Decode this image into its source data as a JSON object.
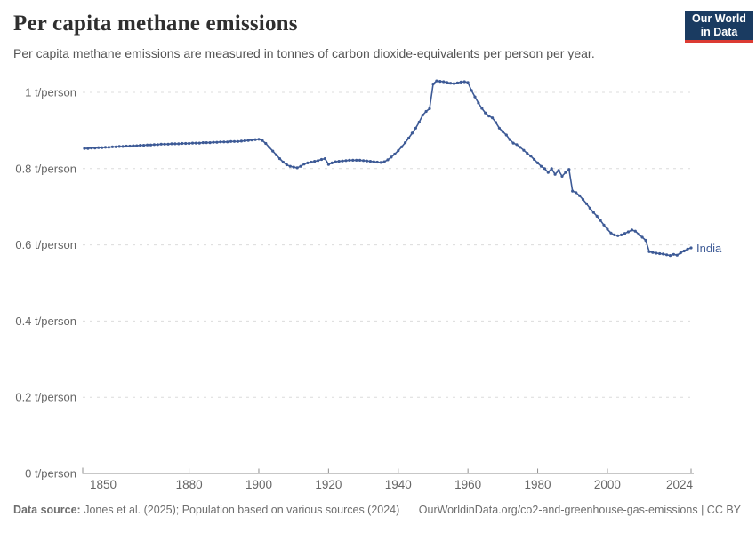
{
  "header": {
    "title": "Per capita methane emissions",
    "subtitle": "Per capita methane emissions are measured in tonnes of carbon dioxide-equivalents per person per year.",
    "logo": {
      "line1": "Our World",
      "line2": "in Data"
    }
  },
  "footer": {
    "source_label": "Data source:",
    "source_text": "Jones et al. (2025); Population based on various sources (2024)",
    "link_text": "OurWorldinData.org/co2-and-greenhouse-gas-emissions",
    "separator": "|",
    "license": "CC BY"
  },
  "colors": {
    "series": "#3d5a96",
    "grid": "#dcdcdc",
    "axis": "#8f8f8f",
    "tick_label": "#666666",
    "logo_bg": "#1a3b61",
    "logo_accent": "#dc3b33"
  },
  "chart_data": {
    "type": "line",
    "title": "Per capita methane emissions",
    "xlabel": "",
    "ylabel": "t/person",
    "grid": "horizontal dashed",
    "legend_position": "end-of-line label",
    "xlim": [
      1850,
      2024
    ],
    "ylim": [
      0,
      1.05
    ],
    "x_ticks": [
      1850,
      1880,
      1900,
      1920,
      1940,
      1960,
      1980,
      2000,
      2024
    ],
    "y_ticks": [
      {
        "v": 0,
        "label": "0 t/person"
      },
      {
        "v": 0.2,
        "label": "0.2 t/person"
      },
      {
        "v": 0.4,
        "label": "0.4 t/person"
      },
      {
        "v": 0.6,
        "label": "0.6 t/person"
      },
      {
        "v": 0.8,
        "label": "0.8 t/person"
      },
      {
        "v": 1,
        "label": "1 t/person"
      }
    ],
    "series": [
      {
        "name": "India",
        "color": "#3d5a96",
        "year_start": 1850,
        "year_step": 1,
        "values": [
          0.853,
          0.853,
          0.854,
          0.854,
          0.855,
          0.855,
          0.856,
          0.856,
          0.857,
          0.857,
          0.858,
          0.858,
          0.859,
          0.859,
          0.86,
          0.86,
          0.861,
          0.861,
          0.862,
          0.862,
          0.863,
          0.863,
          0.864,
          0.864,
          0.864,
          0.865,
          0.865,
          0.865,
          0.866,
          0.866,
          0.866,
          0.867,
          0.867,
          0.867,
          0.868,
          0.868,
          0.868,
          0.869,
          0.869,
          0.87,
          0.87,
          0.87,
          0.871,
          0.871,
          0.871,
          0.872,
          0.873,
          0.874,
          0.875,
          0.876,
          0.877,
          0.874,
          0.866,
          0.856,
          0.846,
          0.836,
          0.826,
          0.817,
          0.81,
          0.806,
          0.804,
          0.802,
          0.806,
          0.812,
          0.815,
          0.817,
          0.819,
          0.821,
          0.824,
          0.826,
          0.811,
          0.815,
          0.818,
          0.819,
          0.82,
          0.821,
          0.822,
          0.822,
          0.822,
          0.822,
          0.821,
          0.82,
          0.819,
          0.818,
          0.817,
          0.816,
          0.818,
          0.823,
          0.83,
          0.838,
          0.847,
          0.857,
          0.868,
          0.88,
          0.893,
          0.906,
          0.922,
          0.94,
          0.95,
          0.957,
          1.022,
          1.03,
          1.029,
          1.028,
          1.026,
          1.024,
          1.023,
          1.025,
          1.027,
          1.028,
          1.026,
          1.005,
          0.988,
          0.972,
          0.958,
          0.946,
          0.938,
          0.933,
          0.921,
          0.906,
          0.897,
          0.888,
          0.876,
          0.867,
          0.863,
          0.856,
          0.848,
          0.84,
          0.833,
          0.824,
          0.815,
          0.806,
          0.8,
          0.79,
          0.8,
          0.785,
          0.795,
          0.78,
          0.79,
          0.798,
          0.741,
          0.737,
          0.729,
          0.719,
          0.708,
          0.696,
          0.685,
          0.675,
          0.664,
          0.652,
          0.641,
          0.631,
          0.626,
          0.624,
          0.626,
          0.63,
          0.634,
          0.639,
          0.636,
          0.628,
          0.62,
          0.612,
          0.582,
          0.58,
          0.578,
          0.577,
          0.576,
          0.574,
          0.572,
          0.575,
          0.573,
          0.579,
          0.584,
          0.589,
          0.592
        ]
      }
    ]
  }
}
